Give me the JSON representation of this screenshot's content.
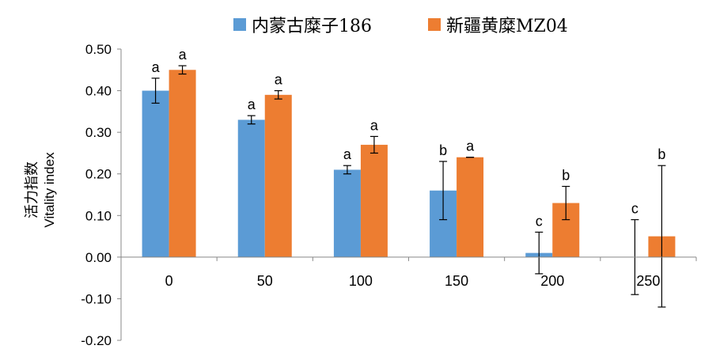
{
  "chart_data": {
    "type": "bar",
    "categories": [
      "0",
      "50",
      "100",
      "150",
      "200",
      "250"
    ],
    "series": [
      {
        "name": "内蒙古糜子186",
        "color": "#5B9BD5",
        "values": [
          0.4,
          0.33,
          0.21,
          0.16,
          0.01,
          0.0
        ],
        "errors": [
          0.03,
          0.01,
          0.01,
          0.07,
          0.05,
          0.09
        ],
        "significance": [
          "a",
          "a",
          "a",
          "b",
          "c",
          "c"
        ]
      },
      {
        "name": "新疆黄糜MZ04",
        "color": "#ED7D31",
        "values": [
          0.45,
          0.39,
          0.27,
          0.24,
          0.13,
          0.05
        ],
        "errors": [
          0.01,
          0.01,
          0.02,
          0.0,
          0.04,
          0.17
        ],
        "significance": [
          "a",
          "a",
          "a",
          "a",
          "b",
          "b"
        ]
      }
    ],
    "ylabel_cn": "活力指数",
    "ylabel": "Vitality index",
    "ylim": [
      -0.2,
      0.5
    ],
    "yticks": [
      "-0.20",
      "-0.10",
      "0.00",
      "0.10",
      "0.20",
      "0.30",
      "0.40",
      "0.50"
    ],
    "legend_position": "top",
    "grid": false
  }
}
